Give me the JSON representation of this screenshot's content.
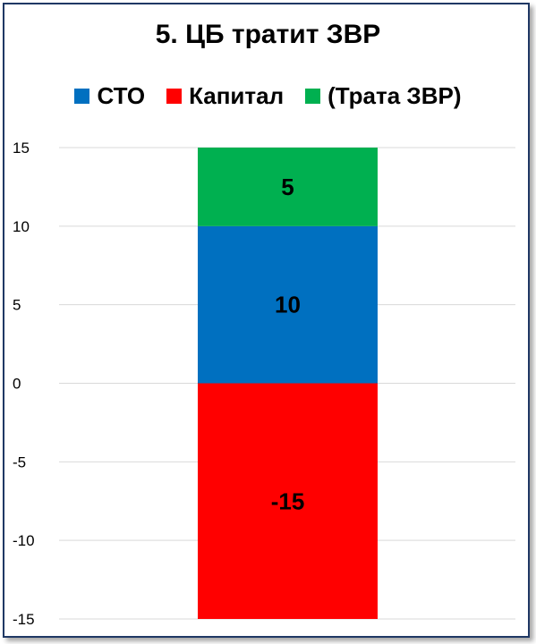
{
  "chart_data": {
    "type": "bar",
    "stacked": true,
    "title": "5. ЦБ тратит ЗВР",
    "categories": [
      ""
    ],
    "ylim": [
      -15,
      15
    ],
    "yticks": [
      15,
      10,
      5,
      0,
      -5,
      -10,
      -15
    ],
    "grid": true,
    "legend_position": "top",
    "series": [
      {
        "name": "СТО",
        "values": [
          10
        ],
        "color": "#0070c0",
        "label": "10"
      },
      {
        "name": "Капитал",
        "values": [
          -15
        ],
        "color": "#ff0000",
        "label": "-15"
      },
      {
        "name": "(Трата ЗВР)",
        "values": [
          5
        ],
        "color": "#00b050",
        "label": "5"
      }
    ]
  }
}
